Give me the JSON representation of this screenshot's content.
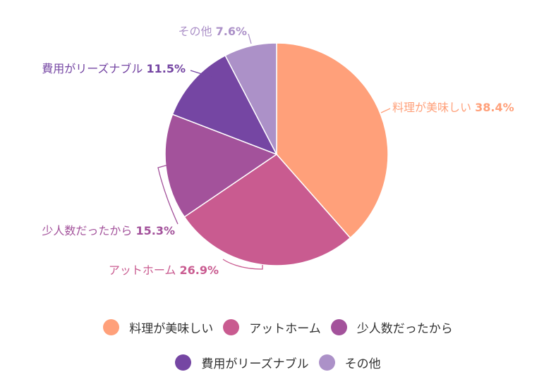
{
  "chart_data": {
    "type": "pie",
    "start_angle": "top",
    "direction": "clockwise",
    "slices": [
      {
        "label": "料理が美味しい",
        "value": 38.4,
        "value_label": "38.4%",
        "color": "#FFA07A"
      },
      {
        "label": "アットホーム",
        "value": 26.9,
        "value_label": "26.9%",
        "color": "#C95B90"
      },
      {
        "label": "少人数だったから",
        "value": 15.3,
        "value_label": "15.3%",
        "color": "#A3529B"
      },
      {
        "label": "費用がリーズナブル",
        "value": 11.5,
        "value_label": "11.5%",
        "color": "#7546A3"
      },
      {
        "label": "その他",
        "value": 7.6,
        "value_label": "7.6%",
        "color": "#AC91C8"
      }
    ],
    "legend": {
      "placement": "bottom"
    }
  }
}
